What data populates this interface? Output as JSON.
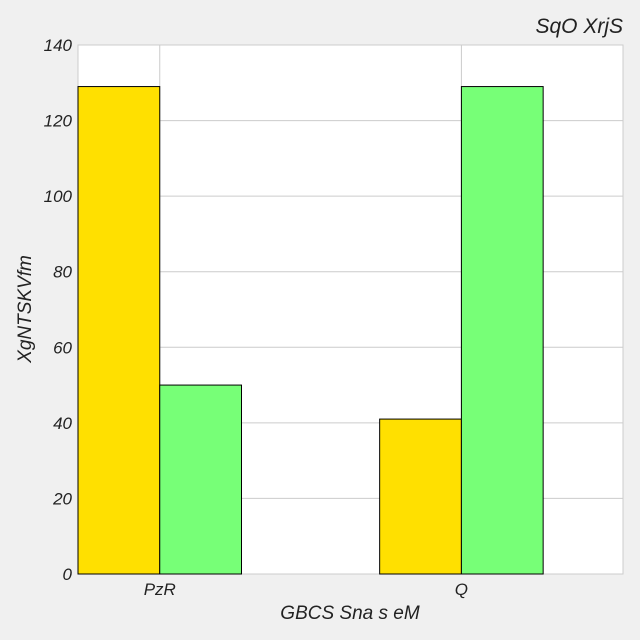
{
  "chart_data": {
    "type": "bar",
    "title": "SqO XrjS",
    "xlabel": "GBCS Sna s eM",
    "ylabel": "XgNTSKVfm",
    "categories": [
      "PzR",
      "Q"
    ],
    "series": [
      {
        "values": [
          129,
          41
        ],
        "color": "#ffe000"
      },
      {
        "values": [
          50,
          129
        ],
        "color": "#77ff77"
      }
    ],
    "ylim": [
      0,
      140
    ],
    "yticks": [
      0,
      20,
      40,
      60,
      80,
      100,
      120,
      140
    ],
    "grid": true,
    "plot_background": "#ffffff",
    "page_background": "#f0f0f0",
    "bar_edge_color": "#000000",
    "grid_color": "#cccccc"
  }
}
